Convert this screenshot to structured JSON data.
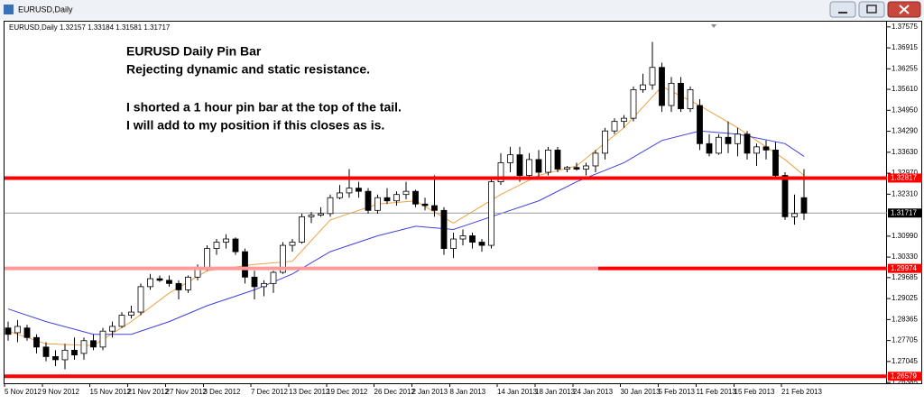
{
  "chart_data": {
    "type": "candlestick",
    "window_title": "EURUSD,Daily",
    "info": "EURUSD,Daily  1.32157 1.33184 1.31581 1.31717",
    "annotations": [
      "EURUSD Daily Pin Bar",
      "Rejecting dynamic and static resistance.",
      "I shorted a 1 hour pin bar at the top of the tail.",
      "I will add to my position if this closes as is."
    ],
    "categories": [
      "5 Nov 2012",
      null,
      null,
      null,
      "9 Nov 2012",
      null,
      null,
      null,
      null,
      "15 Nov 2012",
      null,
      null,
      null,
      "21 Nov 2012",
      null,
      null,
      null,
      "27 Nov 2012",
      null,
      null,
      null,
      "3 Dec 2012",
      null,
      null,
      null,
      null,
      "7 Dec 2012",
      null,
      null,
      null,
      "13 Dec 2012",
      null,
      null,
      null,
      "19 Dec 2012",
      null,
      null,
      null,
      null,
      "26 Dec 2012",
      null,
      null,
      null,
      "2 Jan 2013",
      null,
      null,
      null,
      "8 Jan 2013",
      null,
      null,
      null,
      null,
      "14 Jan 2013",
      null,
      null,
      null,
      "18 Jan 2013",
      null,
      null,
      null,
      "24 Jan 2013",
      null,
      null,
      null,
      null,
      "30 Jan 2013",
      null,
      null,
      null,
      "5 Feb 2013",
      null,
      null,
      null,
      "11 Feb 2013",
      null,
      null,
      null,
      "15 Feb 2013",
      null,
      null,
      null,
      null,
      "21 Feb 2013",
      null,
      null
    ],
    "open": [
      1.281,
      1.2795,
      1.281,
      1.278,
      1.275,
      1.272,
      1.271,
      1.274,
      1.273,
      1.277,
      1.275,
      1.28,
      1.2815,
      1.285,
      1.286,
      1.294,
      1.2965,
      1.296,
      1.295,
      1.293,
      1.297,
      1.3,
      1.306,
      1.308,
      1.309,
      1.305,
      1.297,
      1.294,
      1.295,
      1.2985,
      1.307,
      1.308,
      1.316,
      1.3165,
      1.317,
      1.322,
      1.3235,
      1.325,
      1.324,
      1.318,
      1.322,
      1.321,
      1.323,
      1.324,
      1.32,
      1.3195,
      1.318,
      1.306,
      1.309,
      1.31,
      1.308,
      1.307,
      1.327,
      1.333,
      1.3355,
      1.329,
      1.334,
      1.33,
      1.337,
      1.331,
      1.3315,
      1.331,
      1.332,
      1.336,
      1.343,
      1.346,
      1.347,
      1.356,
      1.3575,
      1.363,
      1.351,
      1.358,
      1.35,
      1.351,
      1.339,
      1.336,
      1.341,
      1.339,
      1.342,
      1.336,
      1.338,
      1.337,
      1.329,
      1.316,
      1.322
    ],
    "high": [
      1.283,
      1.2835,
      1.282,
      1.279,
      1.2765,
      1.274,
      1.276,
      1.278,
      1.278,
      1.279,
      1.281,
      1.283,
      1.286,
      1.288,
      1.295,
      1.298,
      1.2975,
      1.2975,
      1.296,
      1.2975,
      1.301,
      1.307,
      1.309,
      1.3105,
      1.3095,
      1.306,
      1.299,
      1.296,
      1.299,
      1.308,
      1.309,
      1.317,
      1.3175,
      1.319,
      1.323,
      1.326,
      1.331,
      1.327,
      1.325,
      1.323,
      1.325,
      1.324,
      1.327,
      1.3245,
      1.322,
      1.329,
      1.319,
      1.311,
      1.312,
      1.311,
      1.309,
      1.328,
      1.336,
      1.338,
      1.338,
      1.336,
      1.337,
      1.338,
      1.338,
      1.332,
      1.333,
      1.333,
      1.337,
      1.344,
      1.347,
      1.348,
      1.357,
      1.361,
      1.371,
      1.3645,
      1.36,
      1.36,
      1.357,
      1.353,
      1.342,
      1.342,
      1.346,
      1.344,
      1.343,
      1.339,
      1.34,
      1.3395,
      1.33,
      1.323,
      1.331
    ],
    "low": [
      1.277,
      1.2765,
      1.277,
      1.273,
      1.2705,
      1.269,
      1.268,
      1.271,
      1.271,
      1.274,
      1.274,
      1.278,
      1.281,
      1.284,
      1.285,
      1.293,
      1.2955,
      1.294,
      1.29,
      1.292,
      1.296,
      1.299,
      1.304,
      1.306,
      1.304,
      1.295,
      1.29,
      1.291,
      1.292,
      1.298,
      1.305,
      1.3075,
      1.314,
      1.316,
      1.316,
      1.3215,
      1.322,
      1.322,
      1.317,
      1.317,
      1.32,
      1.3195,
      1.3215,
      1.319,
      1.318,
      1.316,
      1.304,
      1.303,
      1.307,
      1.306,
      1.305,
      1.306,
      1.326,
      1.33,
      1.327,
      1.328,
      1.3285,
      1.329,
      1.33,
      1.33,
      1.3305,
      1.329,
      1.33,
      1.334,
      1.342,
      1.344,
      1.346,
      1.355,
      1.356,
      1.349,
      1.349,
      1.349,
      1.349,
      1.337,
      1.335,
      1.3355,
      1.336,
      1.335,
      1.334,
      1.332,
      1.334,
      1.328,
      1.315,
      1.3135,
      1.315
    ],
    "close": [
      1.279,
      1.2815,
      1.278,
      1.275,
      1.272,
      1.271,
      1.274,
      1.2725,
      1.277,
      1.275,
      1.28,
      1.2815,
      1.285,
      1.286,
      1.294,
      1.2965,
      1.296,
      1.295,
      1.293,
      1.297,
      1.3,
      1.306,
      1.308,
      1.309,
      1.305,
      1.297,
      1.294,
      1.295,
      1.2985,
      1.307,
      1.308,
      1.316,
      1.3165,
      1.317,
      1.322,
      1.3235,
      1.325,
      1.324,
      1.318,
      1.322,
      1.321,
      1.323,
      1.324,
      1.32,
      1.3195,
      1.318,
      1.306,
      1.309,
      1.31,
      1.308,
      1.307,
      1.327,
      1.333,
      1.3355,
      1.329,
      1.334,
      1.33,
      1.337,
      1.331,
      1.3315,
      1.331,
      1.332,
      1.336,
      1.343,
      1.346,
      1.347,
      1.356,
      1.3575,
      1.363,
      1.351,
      1.358,
      1.35,
      1.356,
      1.339,
      1.336,
      1.341,
      1.339,
      1.342,
      1.336,
      1.338,
      1.337,
      1.329,
      1.316,
      1.317,
      1.31717
    ],
    "lines": [
      {
        "color": "#f0a040",
        "x": [
          0,
          4,
          9,
          13,
          17,
          21,
          26,
          30,
          34,
          39,
          43,
          47,
          52,
          56,
          60,
          65,
          69,
          73,
          77,
          82,
          84
        ],
        "values": [
          1.28,
          1.276,
          1.2755,
          1.283,
          1.292,
          1.299,
          1.301,
          1.302,
          1.315,
          1.32,
          1.321,
          1.314,
          1.323,
          1.329,
          1.332,
          1.344,
          1.357,
          1.351,
          1.344,
          1.334,
          1.329
        ]
      },
      {
        "color": "#4040e0",
        "x": [
          0,
          4,
          9,
          13,
          17,
          21,
          26,
          30,
          34,
          39,
          43,
          47,
          52,
          56,
          60,
          65,
          69,
          73,
          77,
          82,
          84
        ],
        "values": [
          1.287,
          1.283,
          1.279,
          1.279,
          1.283,
          1.288,
          1.293,
          1.298,
          1.305,
          1.31,
          1.313,
          1.312,
          1.317,
          1.321,
          1.327,
          1.333,
          1.34,
          1.343,
          1.342,
          1.339,
          1.335
        ]
      }
    ],
    "levels": [
      {
        "value": 1.32817,
        "color": "#ff0000"
      },
      {
        "value": 1.29974,
        "color": "#ff0000"
      },
      {
        "value": 1.26579,
        "color": "#ff0000"
      }
    ],
    "current_price": 1.31717,
    "ylim": [
      1.2636,
      1.3774
    ],
    "yticks": [
      1.37575,
      1.36915,
      1.36255,
      {
        "value": 1.3561,
        "label": "1.35610"
      },
      {
        "value": 1.3495,
        "label": "1.34950"
      },
      {
        "value": 1.3429,
        "label": "1.34290"
      },
      {
        "value": 1.3363,
        "label": "1.33630"
      },
      {
        "value": 1.3297,
        "label": "1.32970"
      },
      {
        "value": 1.3231,
        "label": "1.32310"
      },
      {
        "value": 1.3099,
        "label": "1.30990"
      },
      {
        "value": 1.3033,
        "label": "1.30330"
      },
      1.29685,
      1.29025,
      1.28365,
      1.27705,
      1.27045,
      1.26385
    ]
  }
}
